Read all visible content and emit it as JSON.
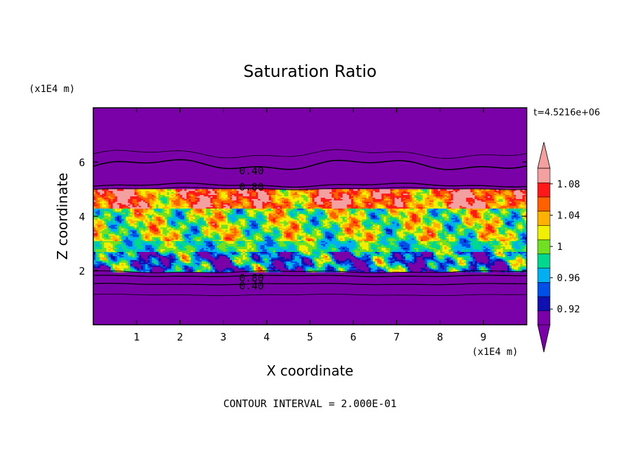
{
  "chart_data": {
    "type": "heatmap",
    "title": "Saturation Ratio",
    "xlabel": "X coordinate",
    "ylabel": "Z coordinate",
    "x_unit_label": "(x1E4 m)",
    "y_unit_label": "(x1E4 m)",
    "time_label": "t=4.5216e+06",
    "footer": "CONTOUR INTERVAL = 2.000E-01",
    "xlim": [
      0,
      10
    ],
    "ylim": [
      0,
      8
    ],
    "x_ticks": [
      "1",
      "2",
      "3",
      "4",
      "5",
      "6",
      "7",
      "8",
      "9"
    ],
    "y_ticks": [
      "2",
      "4",
      "6"
    ],
    "contour_labels": [
      {
        "text": "0.40",
        "x": 3.3,
        "z": 5.7
      },
      {
        "text": "0.80",
        "x": 3.3,
        "z": 5.1
      },
      {
        "text": "0.80",
        "x": 3.3,
        "z": 1.75
      },
      {
        "text": "0.40",
        "x": 3.3,
        "z": 1.45
      }
    ],
    "colorbar": {
      "levels": [
        0.9,
        0.92,
        0.94,
        0.96,
        0.98,
        1.0,
        1.02,
        1.04,
        1.06,
        1.08,
        1.1
      ],
      "tick_labels": [
        "0.92",
        "0.96",
        "1",
        "1.04",
        "1.08"
      ],
      "colors": [
        "#7a00a8",
        "#1010b0",
        "#0050e8",
        "#00b0f0",
        "#00d890",
        "#70e020",
        "#f0f000",
        "#ffb000",
        "#ff6000",
        "#ff1818",
        "#f4a0a0"
      ],
      "under_color": "#7a00a8",
      "over_color": "#f4a0a0"
    },
    "field_description_bands": [
      {
        "z_range": [
          5.0,
          8.0
        ],
        "value_range": [
          0.0,
          0.9
        ]
      },
      {
        "z_range": [
          4.3,
          5.0
        ],
        "value_range": [
          1.02,
          1.1
        ]
      },
      {
        "z_range": [
          3.1,
          4.3
        ],
        "value_range": [
          0.96,
          1.06
        ]
      },
      {
        "z_range": [
          2.7,
          3.1
        ],
        "value_range": [
          0.96,
          1.02
        ]
      },
      {
        "z_range": [
          2.0,
          2.7
        ],
        "value_range": [
          0.9,
          1.02
        ]
      },
      {
        "z_range": [
          0.0,
          2.0
        ],
        "value_range": [
          0.0,
          0.9
        ]
      }
    ]
  }
}
